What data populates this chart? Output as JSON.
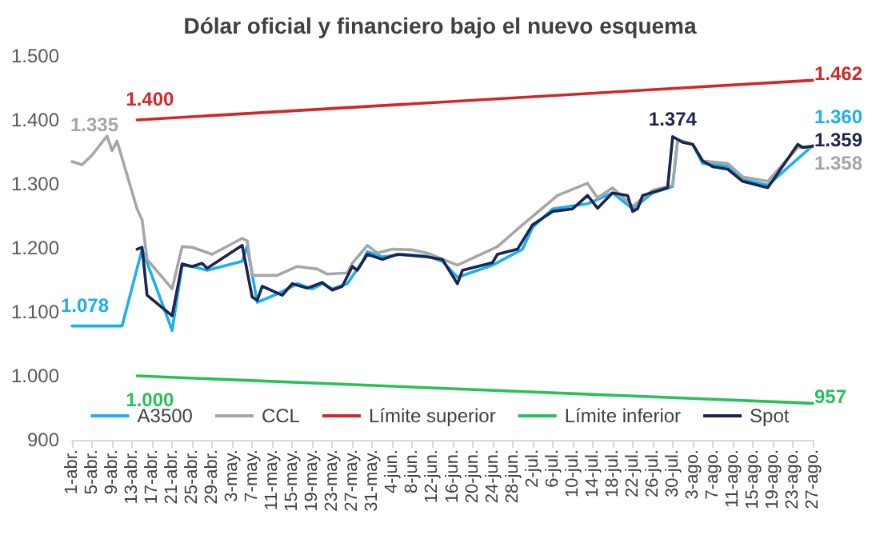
{
  "chart_data": {
    "type": "line",
    "title": "Dólar oficial y financiero bajo el nuevo esquema",
    "xlim": [
      "--04-01",
      "--08-27"
    ],
    "xticks": [
      {
        "value": "--04-01",
        "label": "1-abr."
      },
      {
        "value": "--04-05",
        "label": "5-abr."
      },
      {
        "value": "--04-09",
        "label": "9-abr."
      },
      {
        "value": "--04-13",
        "label": "13-abr."
      },
      {
        "value": "--04-17",
        "label": "17-abr."
      },
      {
        "value": "--04-21",
        "label": "21-abr."
      },
      {
        "value": "--04-25",
        "label": "25-abr."
      },
      {
        "value": "--04-29",
        "label": "29-abr."
      },
      {
        "value": "--05-03",
        "label": "3-may."
      },
      {
        "value": "--05-07",
        "label": "7-may."
      },
      {
        "value": "--05-11",
        "label": "11-may."
      },
      {
        "value": "--05-15",
        "label": "15-may."
      },
      {
        "value": "--05-19",
        "label": "19-may."
      },
      {
        "value": "--05-23",
        "label": "23-may."
      },
      {
        "value": "--05-27",
        "label": "27-may."
      },
      {
        "value": "--05-31",
        "label": "31-may."
      },
      {
        "value": "--06-04",
        "label": "4-jun."
      },
      {
        "value": "--06-08",
        "label": "8-jun."
      },
      {
        "value": "--06-12",
        "label": "12-jun."
      },
      {
        "value": "--06-16",
        "label": "16-jun."
      },
      {
        "value": "--06-20",
        "label": "20-jun."
      },
      {
        "value": "--06-24",
        "label": "24-jun."
      },
      {
        "value": "--06-28",
        "label": "28-jun."
      },
      {
        "value": "--07-02",
        "label": "2-jul."
      },
      {
        "value": "--07-06",
        "label": "6-jul."
      },
      {
        "value": "--07-10",
        "label": "10-jul."
      },
      {
        "value": "--07-14",
        "label": "14-jul."
      },
      {
        "value": "--07-18",
        "label": "18-jul."
      },
      {
        "value": "--07-22",
        "label": "22-jul."
      },
      {
        "value": "--07-26",
        "label": "26-jul."
      },
      {
        "value": "--07-30",
        "label": "30-jul."
      },
      {
        "value": "--08-03",
        "label": "3-ago."
      },
      {
        "value": "--08-07",
        "label": "7-ago."
      },
      {
        "value": "--08-11",
        "label": "11-ago."
      },
      {
        "value": "--08-15",
        "label": "15-ago."
      },
      {
        "value": "--08-19",
        "label": "19-ago."
      },
      {
        "value": "--08-23",
        "label": "23-ago."
      },
      {
        "value": "--08-27",
        "label": "27-ago."
      }
    ],
    "ylim": [
      900,
      1500
    ],
    "yticks": [
      900,
      {
        "value": 1000,
        "label": "1.000"
      },
      {
        "value": 1100,
        "label": "1.100"
      },
      {
        "value": 1200,
        "label": "1.200"
      },
      {
        "value": 1300,
        "label": "1.300"
      },
      {
        "value": 1400,
        "label": "1.400"
      },
      {
        "value": 1500,
        "label": "1.500"
      }
    ],
    "grid": false,
    "legend": "bottom",
    "marker": "none",
    "line_style": "solid",
    "series": [
      {
        "name": "A3500",
        "color": "#1ab0ef",
        "x": [
          "--04-01",
          "--04-11",
          "--04-15",
          "--04-21",
          "--04-23",
          "--04-25",
          "--04-28",
          "--05-05",
          "--05-06",
          "--05-08",
          "--05-12",
          "--05-16",
          "--05-19",
          "--05-21",
          "--05-23",
          "--05-26",
          "--05-29",
          "--05-30",
          "--06-02",
          "--06-06",
          "--06-11",
          "--06-14",
          "--06-17",
          "--06-24",
          "--06-30",
          "--07-02",
          "--07-06",
          "--07-13",
          "--07-18",
          "--07-22",
          "--07-26",
          "--07-30",
          "--07-31",
          "--08-03",
          "--08-05",
          "--08-10",
          "--08-13",
          "--08-18",
          "--08-27"
        ],
        "values": [
          1078,
          1078,
          1198,
          1071,
          1173,
          1171,
          1165,
          1179,
          1203,
          1115,
          1128,
          1144,
          1136,
          1144,
          1136,
          1144,
          1178,
          1194,
          1186,
          1190,
          1187,
          1179,
          1154,
          1173,
          1198,
          1232,
          1261,
          1269,
          1286,
          1261,
          1286,
          1296,
          1369,
          1362,
          1332,
          1328,
          1307,
          1298,
          1360
        ],
        "value_labels": [
          "1.078",
          null,
          null,
          null,
          null,
          null,
          null,
          null,
          null,
          null,
          null,
          null,
          null,
          null,
          null,
          null,
          null,
          null,
          null,
          null,
          null,
          null,
          null,
          null,
          null,
          null,
          null,
          null,
          null,
          null,
          null,
          null,
          null,
          null,
          null,
          null,
          null,
          null,
          "1.360"
        ]
      },
      {
        "name": "CCL",
        "color": "#a6a6a6",
        "x": [
          "--04-01",
          "--04-03",
          "--04-05",
          "--04-08",
          "--04-09",
          "--04-10",
          "--04-14",
          "--04-15",
          "--04-16",
          "--04-21",
          "--04-23",
          "--04-25",
          "--04-29",
          "--05-05",
          "--05-06",
          "--05-07",
          "--05-12",
          "--05-16",
          "--05-20",
          "--05-22",
          "--05-26",
          "--05-27",
          "--05-30",
          "--06-01",
          "--06-04",
          "--06-08",
          "--06-11",
          "--06-17",
          "--06-25",
          "--06-30",
          "--07-07",
          "--07-13",
          "--07-15",
          "--07-18",
          "--07-22",
          "--07-26",
          "--07-30",
          "--07-31",
          "--08-03",
          "--08-05",
          "--08-10",
          "--08-13",
          "--08-18",
          "--08-24",
          "--08-27"
        ],
        "values": [
          1335,
          1330,
          1345,
          1375,
          1352,
          1367,
          1261,
          1244,
          1182,
          1136,
          1202,
          1201,
          1190,
          1215,
          1211,
          1157,
          1157,
          1171,
          1167,
          1159,
          1161,
          1176,
          1204,
          1192,
          1198,
          1197,
          1192,
          1173,
          1202,
          1236,
          1282,
          1301,
          1278,
          1294,
          1265,
          1290,
          1298,
          1369,
          1362,
          1336,
          1332,
          1311,
          1304,
          1357,
          1358
        ],
        "value_labels": [
          "1.335",
          null,
          null,
          null,
          null,
          null,
          null,
          null,
          null,
          null,
          null,
          null,
          null,
          null,
          null,
          null,
          null,
          null,
          null,
          null,
          null,
          null,
          null,
          null,
          null,
          null,
          null,
          null,
          null,
          null,
          null,
          null,
          null,
          null,
          null,
          null,
          null,
          null,
          null,
          null,
          null,
          null,
          null,
          null,
          "1.358"
        ]
      },
      {
        "name": "Límite superior",
        "color": "#d0282a",
        "x": [
          "--04-14",
          "--08-27"
        ],
        "values": [
          1400,
          1462
        ],
        "value_labels": [
          "1.400",
          "1.462"
        ]
      },
      {
        "name": "Límite inferior",
        "color": "#2bbf5a",
        "x": [
          "--04-14",
          "--08-27"
        ],
        "values": [
          1000,
          957
        ],
        "value_labels": [
          "1.000",
          "957"
        ]
      },
      {
        "name": "Spot",
        "color": "#1c2450",
        "x": [
          "--04-14",
          "--04-15",
          "--04-16",
          "--04-21",
          "--04-23",
          "--04-25",
          "--04-27",
          "--04-28",
          "--05-05",
          "--05-07",
          "--05-08",
          "--05-09",
          "--05-13",
          "--05-15",
          "--05-18",
          "--05-21",
          "--05-23",
          "--05-25",
          "--05-27",
          "--05-28",
          "--05-30",
          "--06-02",
          "--06-05",
          "--06-11",
          "--06-14",
          "--06-17",
          "--06-18",
          "--06-24",
          "--06-25",
          "--06-29",
          "--07-02",
          "--07-06",
          "--07-10",
          "--07-13",
          "--07-15",
          "--07-18",
          "--07-21",
          "--07-22",
          "--07-23",
          "--07-24",
          "--07-29",
          "--07-30",
          "--08-01",
          "--08-03",
          "--08-05",
          "--08-07",
          "--08-10",
          "--08-13",
          "--08-18",
          "--08-24",
          "--08-25",
          "--08-27"
        ],
        "values": [
          1198,
          1201,
          1126,
          1094,
          1175,
          1171,
          1176,
          1168,
          1204,
          1123,
          1118,
          1140,
          1126,
          1144,
          1137,
          1146,
          1134,
          1140,
          1171,
          1165,
          1190,
          1182,
          1190,
          1186,
          1182,
          1144,
          1165,
          1177,
          1190,
          1198,
          1236,
          1257,
          1261,
          1282,
          1262,
          1286,
          1282,
          1257,
          1261,
          1282,
          1294,
          1374,
          1365,
          1362,
          1336,
          1327,
          1323,
          1304,
          1294,
          1362,
          1357,
          1359
        ],
        "value_labels": [
          null,
          null,
          null,
          null,
          null,
          null,
          null,
          null,
          null,
          null,
          null,
          null,
          null,
          null,
          null,
          null,
          null,
          null,
          null,
          null,
          null,
          null,
          null,
          null,
          null,
          null,
          null,
          null,
          null,
          null,
          null,
          null,
          null,
          null,
          null,
          null,
          null,
          null,
          null,
          null,
          null,
          "1.374",
          null,
          null,
          null,
          null,
          null,
          null,
          null,
          null,
          null,
          "1.359"
        ]
      }
    ]
  }
}
